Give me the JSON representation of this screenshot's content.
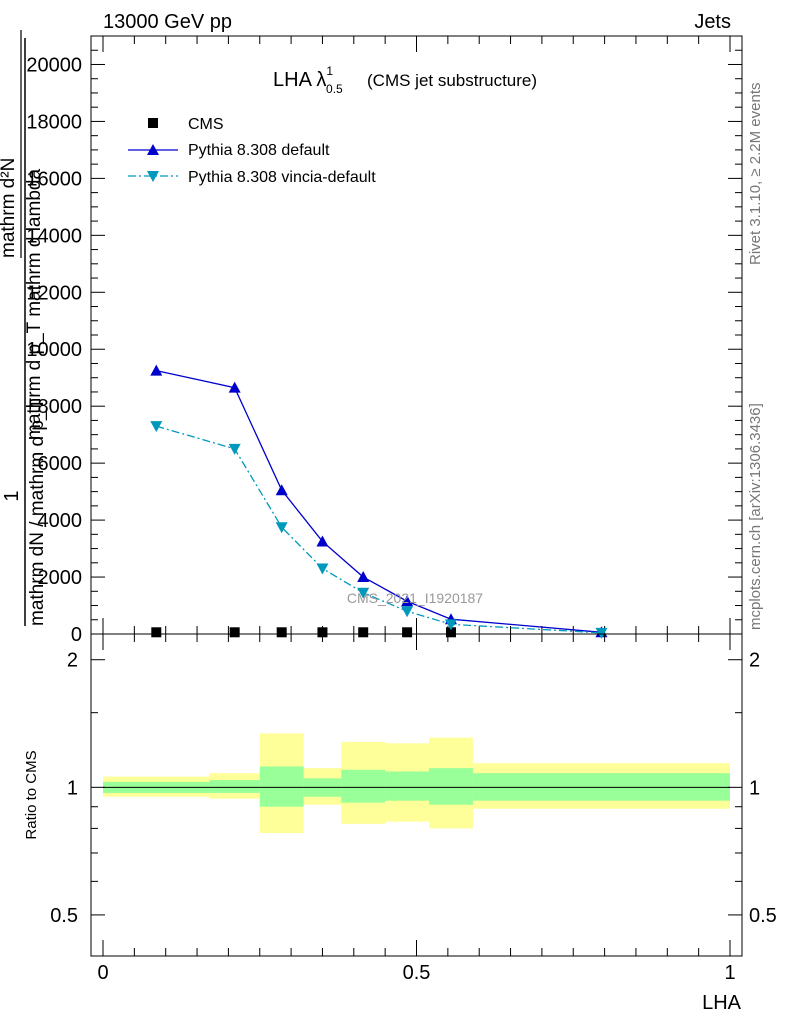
{
  "header": {
    "energy": "13000 GeV pp",
    "category": "Jets"
  },
  "side_labels": {
    "rivet": "Rivet 3.1.10, ≥ 2.2M events",
    "source": "mcplots.cern.ch [arXiv:1306.3436]"
  },
  "watermark": "CMS_2021_I1920187",
  "chart_data": [
    {
      "type": "line",
      "title": "LHA λ",
      "title_superscript": "1",
      "title_subscript": "0.5",
      "subtitle": "(CMS jet substructure)",
      "ylabel_numerator": "1",
      "ylabel_denominator": "mathrm dN / mathrm d p_T",
      "ylabel_inner_numerator": "mathrm d²N",
      "ylabel_inner_denominator": "mathrm d p_T mathrm d lambda",
      "ylim": [
        0,
        21000
      ],
      "y_ticks": [
        0,
        2000,
        4000,
        6000,
        8000,
        10000,
        12000,
        14000,
        16000,
        18000,
        20000
      ],
      "y_tick_labels": [
        "0",
        "2000",
        "4000",
        "6000",
        "8000",
        "10000",
        "12000",
        "14000",
        "16000",
        "18000",
        "20000"
      ],
      "xlim": [
        0,
        1
      ],
      "legend_placement": "top-left",
      "series": [
        {
          "name": "CMS",
          "color": "#000000",
          "marker": "square",
          "x": [
            0.085,
            0.21,
            0.285,
            0.35,
            0.415,
            0.485,
            0.555
          ],
          "values": [
            60,
            60,
            60,
            60,
            60,
            60,
            60
          ]
        },
        {
          "name": "Pythia 8.308 default",
          "color": "#0000cc",
          "marker": "triangle-up",
          "line": "solid",
          "x": [
            0.085,
            0.21,
            0.285,
            0.35,
            0.415,
            0.485,
            0.555,
            0.795
          ],
          "values": [
            9250,
            8650,
            5050,
            3250,
            2000,
            1150,
            520,
            60
          ]
        },
        {
          "name": "Pythia 8.308 vincia-default",
          "color": "#0099bb",
          "marker": "triangle-down",
          "line": "dashdot",
          "x": [
            0.085,
            0.21,
            0.285,
            0.35,
            0.415,
            0.485,
            0.555,
            0.795
          ],
          "values": [
            7300,
            6500,
            3750,
            2300,
            1450,
            800,
            340,
            40
          ]
        }
      ]
    },
    {
      "type": "area",
      "ylabel": "Ratio to CMS",
      "xlabel": "LHA",
      "ylim": [
        0.4,
        2.3
      ],
      "y_scale": "log",
      "y_ticks": [
        0.5,
        1,
        2
      ],
      "y_tick_labels": [
        "0.5",
        "1",
        "2"
      ],
      "xlim": [
        0,
        1
      ],
      "x_ticks": [
        0,
        0.5,
        1
      ],
      "x_tick_labels": [
        "0",
        "0.5",
        "1"
      ],
      "reference_line": 1,
      "bands": {
        "bin_edges": [
          0,
          0.17,
          0.25,
          0.32,
          0.38,
          0.45,
          0.52,
          0.59,
          1.0
        ],
        "inner": {
          "color": "#99ff99",
          "low": [
            0.97,
            0.97,
            0.9,
            0.95,
            0.92,
            0.93,
            0.91,
            0.93
          ],
          "high": [
            1.03,
            1.04,
            1.12,
            1.05,
            1.1,
            1.09,
            1.11,
            1.08
          ]
        },
        "outer": {
          "color": "#ffff99",
          "low": [
            0.95,
            0.94,
            0.78,
            0.91,
            0.82,
            0.83,
            0.8,
            0.89
          ],
          "high": [
            1.06,
            1.08,
            1.34,
            1.11,
            1.28,
            1.27,
            1.31,
            1.14
          ]
        }
      }
    }
  ]
}
